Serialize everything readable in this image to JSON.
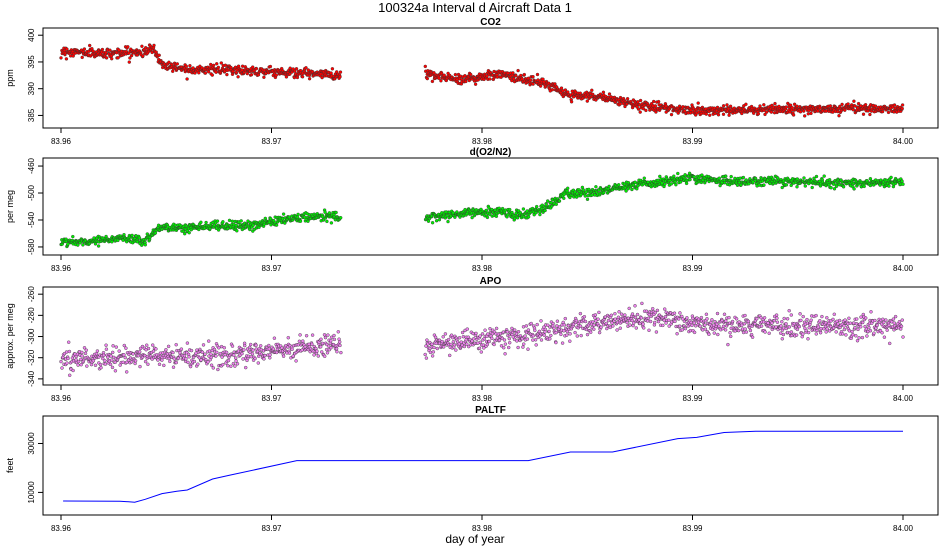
{
  "figure_title": "100324a   Interval d Aircraft Data 1",
  "xlabel": "day of year",
  "colors": {
    "co2": "#ff0000",
    "o2n2": "#00ee00",
    "apo": "#ee82ee",
    "paltf": "#0000ff",
    "marker_edge": "#333333"
  },
  "chart_data": [
    {
      "type": "scatter",
      "title": "CO2",
      "ylabel": "ppm",
      "xlim": [
        83.96,
        84.0
      ],
      "ylim": [
        383.4,
        400.6
      ],
      "yticks": [
        385,
        390,
        395,
        400
      ],
      "xticks": [
        83.96,
        83.97,
        83.98,
        83.99,
        84.0
      ],
      "xtick_labels": [
        "83.96",
        "83.97",
        "83.98",
        "83.99",
        "84.00"
      ],
      "ytick_labels": [
        "385",
        "390",
        "395",
        "400"
      ],
      "series": [
        {
          "values_profile": [
            [
              83.96,
              397
            ],
            [
              83.962,
              396.6
            ],
            [
              83.964,
              396.9
            ],
            [
              83.9644,
              397.6
            ],
            [
              83.9648,
              394.5
            ],
            [
              83.966,
              393.7
            ],
            [
              83.968,
              393.5
            ],
            [
              83.97,
              393.2
            ],
            [
              83.9733,
              392.5
            ],
            [
              83.9773,
              392.6
            ],
            [
              83.979,
              391.7
            ],
            [
              83.981,
              392.8
            ],
            [
              83.9815,
              392.3
            ],
            [
              83.983,
              391.0
            ],
            [
              83.984,
              389.0
            ],
            [
              83.986,
              388.2
            ],
            [
              83.987,
              387.2
            ],
            [
              83.989,
              386.2
            ],
            [
              83.99,
              385.9
            ],
            [
              83.992,
              386.0
            ],
            [
              83.994,
              386.3
            ],
            [
              83.996,
              386.1
            ],
            [
              83.998,
              386.3
            ],
            [
              84.0,
              386.2
            ]
          ],
          "gaps": [
            [
              83.9733,
              83.9773
            ]
          ],
          "noise": 0.45,
          "n_points": 1600
        }
      ]
    },
    {
      "type": "scatter",
      "title": "d(O2/N2)",
      "ylabel": "per meg",
      "xlim": [
        83.96,
        84.0
      ],
      "ylim": [
        -586,
        -454
      ],
      "yticks": [
        -580,
        -540,
        -500,
        -460
      ],
      "xticks": [
        83.96,
        83.97,
        83.98,
        83.99,
        84.0
      ],
      "xtick_labels": [
        "83.96",
        "83.97",
        "83.98",
        "83.99",
        "84.00"
      ],
      "ytick_labels": [
        "-580",
        "-540",
        "-500",
        "-460"
      ],
      "series": [
        {
          "values_profile": [
            [
              83.96,
              -573
            ],
            [
              83.962,
              -570
            ],
            [
              83.963,
              -566
            ],
            [
              83.964,
              -572
            ],
            [
              83.9644,
              -560
            ],
            [
              83.9646,
              -552
            ],
            [
              83.967,
              -550
            ],
            [
              83.969,
              -548
            ],
            [
              83.971,
              -538
            ],
            [
              83.9733,
              -533
            ],
            [
              83.9773,
              -537
            ],
            [
              83.979,
              -531
            ],
            [
              83.981,
              -527
            ],
            [
              83.9815,
              -534
            ],
            [
              83.983,
              -522
            ],
            [
              83.984,
              -502
            ],
            [
              83.986,
              -496
            ],
            [
              83.987,
              -489
            ],
            [
              83.989,
              -482
            ],
            [
              83.99,
              -478
            ],
            [
              83.992,
              -483
            ],
            [
              83.994,
              -482
            ],
            [
              83.996,
              -484
            ],
            [
              83.998,
              -485
            ],
            [
              84.0,
              -484
            ]
          ],
          "gaps": [
            [
              83.9733,
              83.9773
            ]
          ],
          "noise": 3.5,
          "n_points": 1600
        }
      ]
    },
    {
      "type": "scatter",
      "title": "APO",
      "ylabel": "approx. per meg",
      "xlim": [
        83.96,
        84.0
      ],
      "ylim": [
        -342,
        -257
      ],
      "yticks": [
        -340,
        -320,
        -300,
        -280,
        -260
      ],
      "xticks": [
        83.96,
        83.97,
        83.98,
        83.99,
        84.0
      ],
      "xtick_labels": [
        "83.96",
        "83.97",
        "83.98",
        "83.99",
        "84.00"
      ],
      "ytick_labels": [
        "-340",
        "-320",
        "-300",
        "-280",
        "-260"
      ],
      "series": [
        {
          "values_profile": [
            [
              83.96,
              -322
            ],
            [
              83.962,
              -320
            ],
            [
              83.965,
              -318
            ],
            [
              83.968,
              -319
            ],
            [
              83.97,
              -313
            ],
            [
              83.9733,
              -306
            ],
            [
              83.9773,
              -309
            ],
            [
              83.979,
              -305
            ],
            [
              83.981,
              -301
            ],
            [
              83.983,
              -297
            ],
            [
              83.985,
              -289
            ],
            [
              83.987,
              -283
            ],
            [
              83.989,
              -285
            ],
            [
              83.99,
              -288
            ],
            [
              83.992,
              -291
            ],
            [
              83.994,
              -289
            ],
            [
              83.996,
              -291
            ],
            [
              83.998,
              -290
            ],
            [
              84.0,
              -290
            ]
          ],
          "gaps": [
            [
              83.9733,
              83.9773
            ]
          ],
          "noise": 5,
          "n_points": 1600
        }
      ]
    },
    {
      "type": "line",
      "title": "PALTF",
      "ylabel": "feet",
      "xlim": [
        83.96,
        84.0
      ],
      "ylim": [
        2400,
        39600
      ],
      "yticks": [
        10000,
        30000
      ],
      "xticks": [
        83.96,
        83.97,
        83.98,
        83.99,
        84.0
      ],
      "xtick_labels": [
        "83.96",
        "83.97",
        "83.98",
        "83.99",
        "84.00"
      ],
      "ytick_labels": [
        "10000",
        "30000"
      ],
      "series": [
        {
          "x": [
            83.9601,
            83.9628,
            83.9635,
            83.964,
            83.9648,
            83.9655,
            83.966,
            83.9672,
            83.968,
            83.9712,
            83.9822,
            83.9842,
            83.9862,
            83.9893,
            83.9902,
            83.9915,
            83.993,
            84.0
          ],
          "y": [
            6500,
            6400,
            6000,
            7200,
            9500,
            10500,
            11000,
            15500,
            17000,
            23000,
            23000,
            26500,
            26500,
            32000,
            32500,
            34500,
            35000,
            35000
          ]
        }
      ]
    }
  ]
}
